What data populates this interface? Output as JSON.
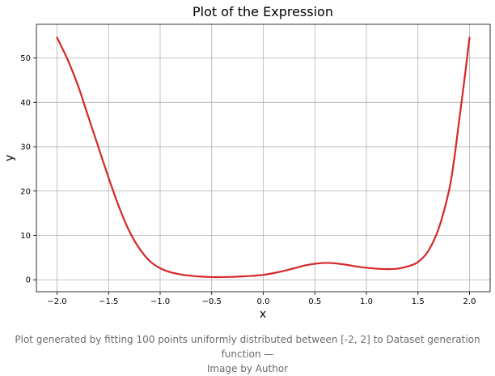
{
  "chart_data": {
    "type": "line",
    "title": "Plot of the Expression",
    "xlabel": "x",
    "ylabel": "y",
    "xlim": [
      -2.2,
      2.2
    ],
    "ylim": [
      -2.7,
      57.6
    ],
    "xticks": [
      -2.0,
      -1.5,
      -1.0,
      -0.5,
      0.0,
      0.5,
      1.0,
      1.5,
      2.0
    ],
    "xtick_labels": [
      "−2.0",
      "−1.5",
      "−1.0",
      "−0.5",
      "0.0",
      "0.5",
      "1.0",
      "1.5",
      "2.0"
    ],
    "yticks": [
      0,
      10,
      20,
      30,
      40,
      50
    ],
    "ytick_labels": [
      "0",
      "10",
      "20",
      "30",
      "40",
      "50"
    ],
    "grid": true,
    "series": [
      {
        "color": "#d62728",
        "x": [
          -2.0,
          -1.9,
          -1.8,
          -1.7,
          -1.6,
          -1.5,
          -1.4,
          -1.3,
          -1.2,
          -1.1,
          -1.0,
          -0.9,
          -0.8,
          -0.7,
          -0.6,
          -0.5,
          -0.4,
          -0.3,
          -0.2,
          -0.1,
          0.0,
          0.1,
          0.2,
          0.3,
          0.4,
          0.5,
          0.6,
          0.7,
          0.8,
          0.9,
          1.0,
          1.1,
          1.2,
          1.3,
          1.4,
          1.5,
          1.6,
          1.7,
          1.8,
          1.85,
          1.9,
          1.95,
          2.0
        ],
        "y": [
          54.6,
          49.8,
          44.0,
          37.0,
          30.0,
          23.0,
          16.5,
          11.0,
          7.0,
          4.2,
          2.6,
          1.7,
          1.2,
          0.9,
          0.7,
          0.6,
          0.6,
          0.65,
          0.75,
          0.9,
          1.1,
          1.5,
          2.0,
          2.6,
          3.2,
          3.6,
          3.8,
          3.7,
          3.4,
          3.0,
          2.7,
          2.5,
          2.4,
          2.5,
          3.0,
          4.0,
          6.5,
          11.5,
          20.0,
          27.0,
          36.0,
          45.0,
          54.6
        ]
      }
    ]
  },
  "caption": {
    "line1": "Plot generated by fitting 100 points uniformly distributed between [-2, 2] to Dataset generation function —",
    "line2": "Image by Author"
  }
}
